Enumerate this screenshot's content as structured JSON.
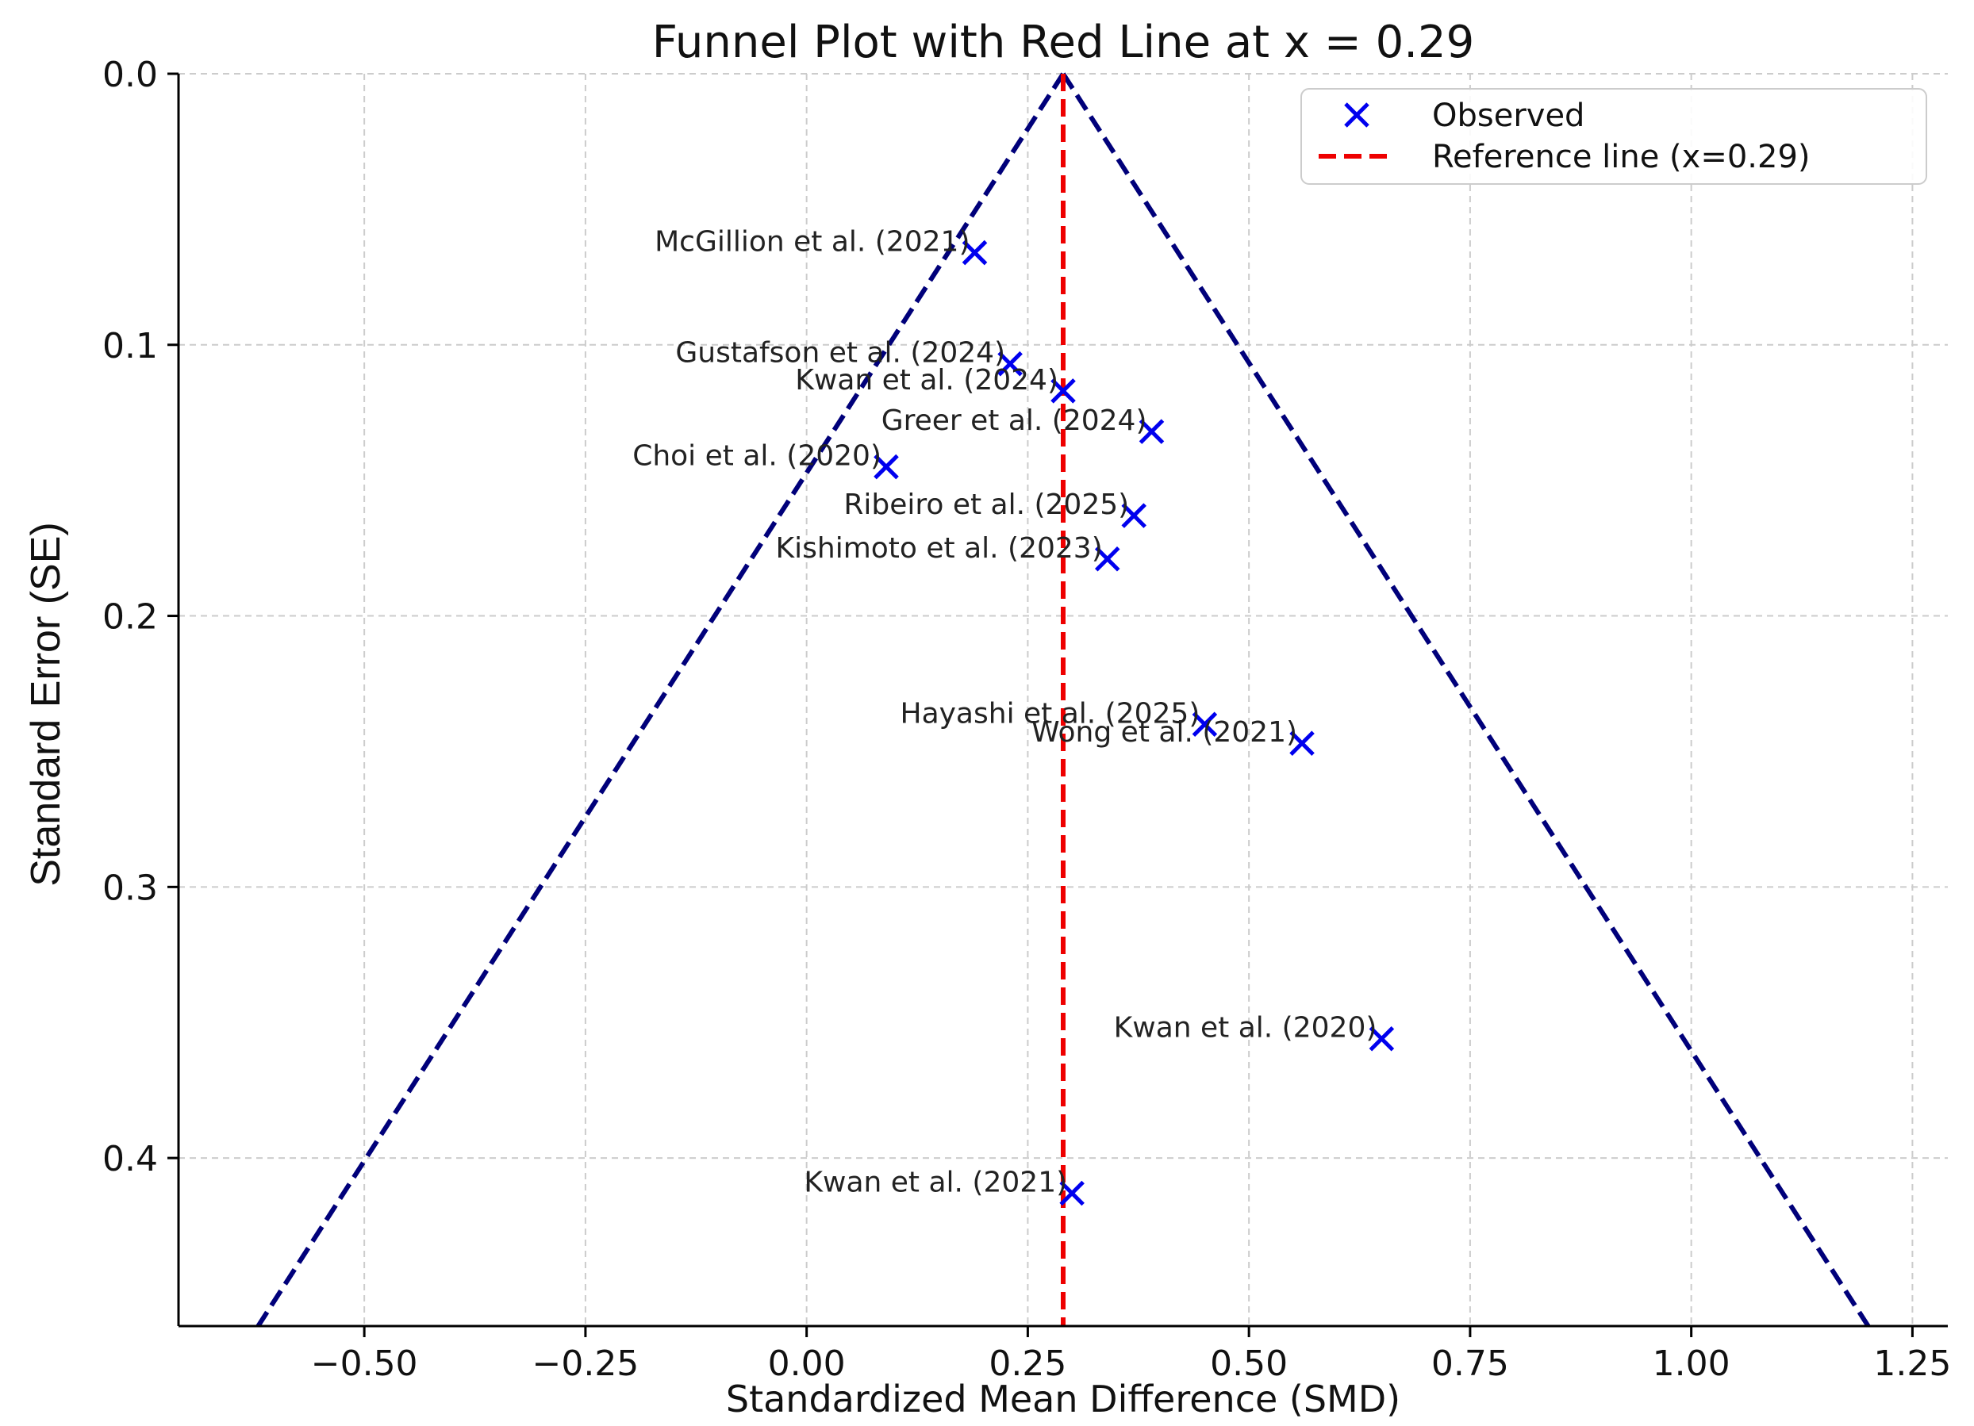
{
  "chart_data": {
    "type": "scatter",
    "title": "Funnel Plot with Red Line at x = 0.29",
    "xlabel": "Standardized Mean Difference (SMD)",
    "ylabel": "Standard Error (SE)",
    "xlim": [
      -0.71,
      1.29
    ],
    "ylim": [
      0.0,
      0.462
    ],
    "y_inverted": true,
    "grid": true,
    "legend_position": "top-right",
    "x_ticks": [
      -0.5,
      -0.25,
      0.0,
      0.25,
      0.5,
      0.75,
      1.0,
      1.25
    ],
    "x_tick_labels": [
      "−0.50",
      "−0.25",
      "0.00",
      "0.25",
      "0.50",
      "0.75",
      "1.00",
      "1.25"
    ],
    "y_ticks": [
      0.0,
      0.1,
      0.2,
      0.3,
      0.4
    ],
    "y_tick_labels": [
      "0.0",
      "0.1",
      "0.2",
      "0.3",
      "0.4"
    ],
    "reference_x": 0.29,
    "funnel_apex": [
      0.29,
      0.0
    ],
    "funnel_left_end": [
      -0.62,
      0.462
    ],
    "funnel_right_end": [
      1.2,
      0.462
    ],
    "colors": {
      "points": "#0000ee",
      "reference_line": "#ee0000",
      "funnel": "#00007a",
      "grid": "#cccccc"
    },
    "legend": [
      {
        "label": "Observed",
        "marker": "x"
      },
      {
        "label": "Reference line (x=0.29)",
        "marker": "dashed-line"
      }
    ],
    "points": [
      {
        "label": "McGillion et al. (2021)",
        "x": 0.19,
        "y": 0.066
      },
      {
        "label": "Gustafson et al. (2024)",
        "x": 0.23,
        "y": 0.107
      },
      {
        "label": "Kwan et al. (2024)",
        "x": 0.29,
        "y": 0.117
      },
      {
        "label": "Greer et al. (2024)",
        "x": 0.39,
        "y": 0.132
      },
      {
        "label": "Choi et al. (2020)",
        "x": 0.09,
        "y": 0.145
      },
      {
        "label": "Ribeiro et al. (2025)",
        "x": 0.37,
        "y": 0.163
      },
      {
        "label": "Kishimoto et al. (2023)",
        "x": 0.34,
        "y": 0.179
      },
      {
        "label": "Hayashi et al. (2025)",
        "x": 0.45,
        "y": 0.24
      },
      {
        "label": "Wong et al. (2021)",
        "x": 0.56,
        "y": 0.247
      },
      {
        "label": "Kwan et al. (2020)",
        "x": 0.65,
        "y": 0.356
      },
      {
        "label": "Kwan et al. (2021)",
        "x": 0.3,
        "y": 0.413
      }
    ]
  }
}
